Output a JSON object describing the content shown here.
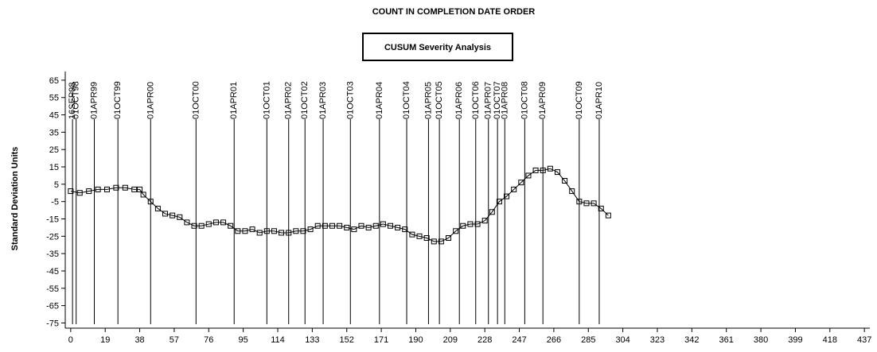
{
  "chart_data": {
    "type": "line",
    "title": "COUNT IN COMPLETION DATE ORDER",
    "subtitle": "CUSUM Severity Analysis",
    "ylabel": "Standard Deviation Units",
    "color": "#000000",
    "marker": "square",
    "xlim": [
      -3,
      440
    ],
    "ylim": [
      -78,
      70
    ],
    "xticks": [
      0,
      19,
      38,
      57,
      76,
      95,
      114,
      133,
      152,
      171,
      190,
      209,
      228,
      247,
      266,
      285,
      304,
      323,
      342,
      361,
      380,
      399,
      418,
      437
    ],
    "yticks": [
      -75,
      -65,
      -55,
      -45,
      -35,
      -25,
      -15,
      -5,
      5,
      15,
      25,
      35,
      45,
      55,
      65
    ],
    "reference_lines": [
      {
        "value": 1,
        "label": "16SEP98"
      },
      {
        "value": 3,
        "label": "01OCT98"
      },
      {
        "value": 13,
        "label": "01APR99"
      },
      {
        "value": 26,
        "label": "01OCT99"
      },
      {
        "value": 44,
        "label": "01APR00"
      },
      {
        "value": 69,
        "label": "01OCT00"
      },
      {
        "value": 90,
        "label": "01APR01"
      },
      {
        "value": 108,
        "label": "01OCT01"
      },
      {
        "value": 120,
        "label": "01APR02"
      },
      {
        "value": 129,
        "label": "01OCT02"
      },
      {
        "value": 139,
        "label": "01APR03"
      },
      {
        "value": 154,
        "label": "01OCT03"
      },
      {
        "value": 170,
        "label": "01APR04"
      },
      {
        "value": 185,
        "label": "01OCT04"
      },
      {
        "value": 197,
        "label": "01APR05"
      },
      {
        "value": 203,
        "label": "01OCT05"
      },
      {
        "value": 214,
        "label": "01APR06"
      },
      {
        "value": 223,
        "label": "01OCT06"
      },
      {
        "value": 230,
        "label": "01APR07"
      },
      {
        "value": 235,
        "label": "01OCT07"
      },
      {
        "value": 239,
        "label": "01APR08"
      },
      {
        "value": 250,
        "label": "01OCT08"
      },
      {
        "value": 260,
        "label": "01APR09"
      },
      {
        "value": 280,
        "label": "01OCT09"
      },
      {
        "value": 291,
        "label": "01APR10"
      }
    ],
    "x": [
      0,
      5,
      10,
      15,
      20,
      25,
      30,
      35,
      38,
      40,
      44,
      48,
      52,
      56,
      60,
      64,
      68,
      72,
      76,
      80,
      84,
      88,
      92,
      96,
      100,
      104,
      108,
      112,
      116,
      120,
      124,
      128,
      132,
      136,
      140,
      144,
      148,
      152,
      156,
      160,
      164,
      168,
      172,
      176,
      180,
      184,
      188,
      192,
      196,
      200,
      204,
      208,
      212,
      216,
      220,
      224,
      228,
      232,
      236,
      240,
      244,
      248,
      252,
      256,
      260,
      264,
      268,
      272,
      276,
      280,
      284,
      288,
      292,
      296
    ],
    "values": [
      1,
      0,
      1,
      2,
      2,
      3,
      3,
      2,
      2,
      -1,
      -5,
      -9,
      -12,
      -13,
      -14,
      -17,
      -19,
      -19,
      -18,
      -17,
      -17,
      -19,
      -22,
      -22,
      -21,
      -23,
      -22,
      -22,
      -23,
      -23,
      -22,
      -22,
      -21,
      -19,
      -19,
      -19,
      -19,
      -20,
      -21,
      -19,
      -20,
      -19,
      -18,
      -19,
      -20,
      -21,
      -24,
      -25,
      -26,
      -28,
      -28,
      -26,
      -22,
      -19,
      -18,
      -18,
      -16,
      -11,
      -5,
      -2,
      2,
      6,
      10,
      13,
      13,
      14,
      12,
      7,
      1,
      -5,
      -6,
      -6,
      -9,
      -13
    ]
  }
}
